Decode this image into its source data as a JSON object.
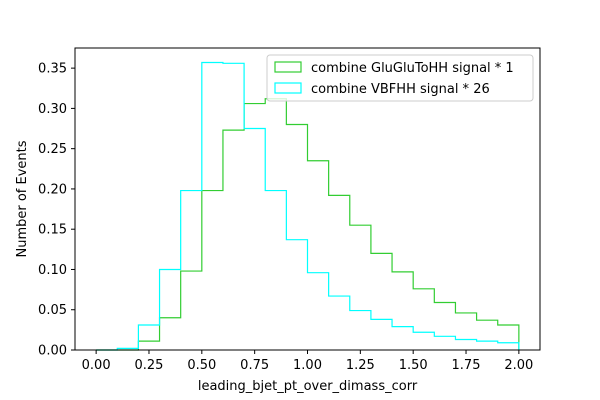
{
  "chart_data": {
    "type": "step-histogram",
    "title": "",
    "xlabel": "leading_bjet_pt_over_dimass_corr",
    "ylabel": "Number of Events",
    "xlim": [
      -0.1,
      2.1
    ],
    "ylim": [
      0,
      0.375
    ],
    "xticks": [
      0.0,
      0.25,
      0.5,
      0.75,
      1.0,
      1.25,
      1.5,
      1.75,
      2.0
    ],
    "xtick_labels": [
      "0.00",
      "0.25",
      "0.50",
      "0.75",
      "1.00",
      "1.25",
      "1.50",
      "1.75",
      "2.00"
    ],
    "yticks": [
      0.0,
      0.05,
      0.1,
      0.15,
      0.2,
      0.25,
      0.3,
      0.35
    ],
    "ytick_labels": [
      "0.00",
      "0.05",
      "0.10",
      "0.15",
      "0.20",
      "0.25",
      "0.30",
      "0.35"
    ],
    "grid": false,
    "legend_position": "top-right",
    "bin_edges": [
      0.0,
      0.1,
      0.2,
      0.3,
      0.4,
      0.5,
      0.6,
      0.7,
      0.8,
      0.9,
      1.0,
      1.1,
      1.2,
      1.3,
      1.4,
      1.5,
      1.6,
      1.7,
      1.8,
      1.9,
      2.0
    ],
    "series": [
      {
        "name": "combine GluGluToHH signal * 1",
        "color": "#32cd32",
        "values": [
          0.0,
          0.0,
          0.011,
          0.04,
          0.098,
          0.198,
          0.273,
          0.306,
          0.312,
          0.28,
          0.235,
          0.192,
          0.155,
          0.12,
          0.097,
          0.076,
          0.059,
          0.046,
          0.037,
          0.031
        ]
      },
      {
        "name": "combine VBFHH signal * 26",
        "color": "#00ffff",
        "values": [
          0.0,
          0.002,
          0.031,
          0.1,
          0.198,
          0.357,
          0.356,
          0.275,
          0.198,
          0.137,
          0.096,
          0.067,
          0.049,
          0.038,
          0.029,
          0.022,
          0.017,
          0.013,
          0.011,
          0.009
        ]
      }
    ]
  }
}
